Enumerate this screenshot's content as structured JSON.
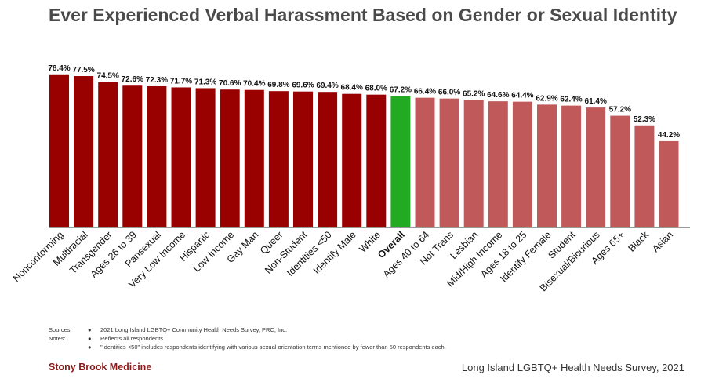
{
  "colors": {
    "primary_bar": "#990000",
    "overall_bar": "#22aa22",
    "secondary_bar": "#c05a5a",
    "overall_label": "#22aa22",
    "footer_brand": "#8b1a1a"
  },
  "chart_data": {
    "type": "bar",
    "title": "Ever Experienced Verbal Harassment Based on Gender or Sexual Identity",
    "xlabel": "",
    "ylabel": "",
    "ylim": [
      0,
      100
    ],
    "grid": false,
    "value_labels": [
      "78.4%",
      "77.5%",
      "74.5%",
      "72.6%",
      "72.3%",
      "71.7%",
      "71.3%",
      "70.6%",
      "70.4%",
      "69.8%",
      "69.6%",
      "69.4%",
      "68.4%",
      "68.0%",
      "67.2%",
      "66.4%",
      "66.0%",
      "65.2%",
      "64.6%",
      "64.4%",
      "62.9%",
      "62.4%",
      "61.4%",
      "57.2%",
      "52.3%",
      "44.2%"
    ],
    "categories": [
      "Nonconforming",
      "Multiracial",
      "Transgender",
      "Ages 26 to 39",
      "Pansexual",
      "Very Low Income",
      "Hispanic",
      "Low Income",
      "Gay Man",
      "Queer",
      "Non-Student",
      "Identities <50",
      "Identify Male",
      "White",
      "Overall",
      "Ages 40 to 64",
      "Not Trans",
      "Lesbian",
      "Mid/High Income",
      "Ages 18 to 25",
      "Identify Female",
      "Student",
      "Bisexual/Bicurious",
      "Ages 65+",
      "Black",
      "Asian"
    ],
    "values": [
      78.4,
      77.5,
      74.5,
      72.6,
      72.3,
      71.7,
      71.3,
      70.6,
      70.4,
      69.8,
      69.6,
      69.4,
      68.4,
      68.0,
      67.2,
      66.4,
      66.0,
      65.2,
      64.6,
      64.4,
      62.9,
      62.4,
      61.4,
      57.2,
      52.3,
      44.2
    ],
    "highlight_category": "Overall"
  },
  "notes": [
    {
      "key": "Sources:",
      "bullet": "●",
      "text": "2021 Long Island LGBTQ+ Community Health Needs Survey, PRC, Inc."
    },
    {
      "key": "Notes:",
      "bullet": "●",
      "text": "Reflects all respondents."
    },
    {
      "key": "",
      "bullet": "●",
      "text": "\"Identities <50\" includes respondents identifying with various sexual orientation terms mentioned by fewer than 50 respondents each."
    }
  ],
  "footer": {
    "left": "Stony Brook Medicine",
    "right": "Long Island LGBTQ+ Health Needs Survey, 2021"
  }
}
